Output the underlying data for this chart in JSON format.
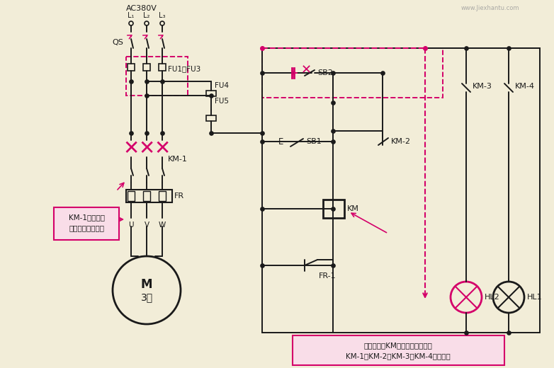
{
  "bg_color": "#f2edd8",
  "line_color": "#1a1a1a",
  "pink_color": "#d4006a",
  "label_AC": "AC380V",
  "label_L1": "L₁",
  "label_L2": "L₂",
  "label_L3": "L₃",
  "label_QS": "QS",
  "label_FU1": "FU1～FU3",
  "label_FU4": "FU4",
  "label_FU5": "FU5",
  "label_KM1": "KM-1",
  "label_FR": "FR",
  "label_UVW": [
    "U",
    "V",
    "W"
  ],
  "label_M": "M",
  "label_3phase": "3～",
  "label_SB2": "SB2",
  "label_SB1": "SB1",
  "label_KM2": "KM-2",
  "label_KM": "KM",
  "label_FR1": "FR-1",
  "label_KM3": "KM-3",
  "label_KM4": "KM-4",
  "label_HL2": "HL2",
  "label_HL1": "HL1",
  "ann1_line1": "KM-1断开，电",
  "ann1_line2": "动机失电停止运转",
  "ann2_line1": "交流接触器KM线圈失电，其触点",
  "ann2_line2": "KM-1、KM-2、KM-3、KM-4全部复位",
  "watermark": "www.Jiexhantu.com"
}
